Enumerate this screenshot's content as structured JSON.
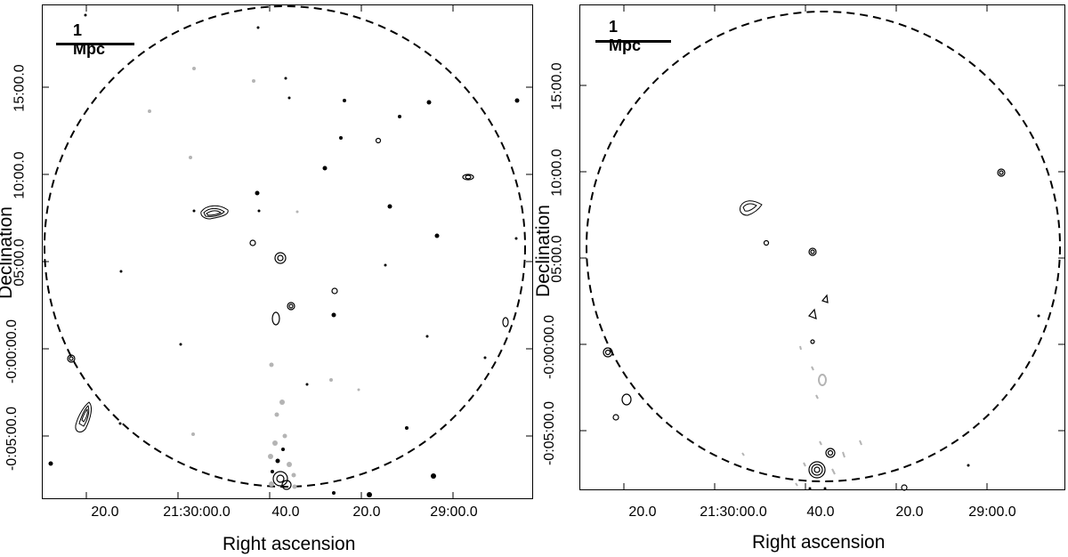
{
  "panels": [
    {
      "scale_label": "1 Mpc",
      "xlabel": "Right ascension",
      "ylabel": "Declination",
      "x_ticks": [
        "20.0",
        "21:30:00.0",
        "40.0",
        "20.0",
        "29:00.0"
      ],
      "y_ticks": [
        "15:00.0",
        "10:00.0",
        "05:00.0",
        "-0:00:00.0",
        "-0:05:00.0"
      ]
    },
    {
      "scale_label": "1 Mpc",
      "xlabel": "Right ascension",
      "ylabel": "Declination",
      "x_ticks": [
        "20.0",
        "21:30:00.0",
        "40.0",
        "20.0",
        "29:00.0"
      ],
      "y_ticks": [
        "15:00.0",
        "10:00.0",
        "05:00.0",
        "-0:00:00.0",
        "-0:05:00.0"
      ]
    }
  ],
  "colors": {
    "contour": "#000000",
    "negative_contour": "#b4b4b4",
    "circle": "#000000"
  }
}
